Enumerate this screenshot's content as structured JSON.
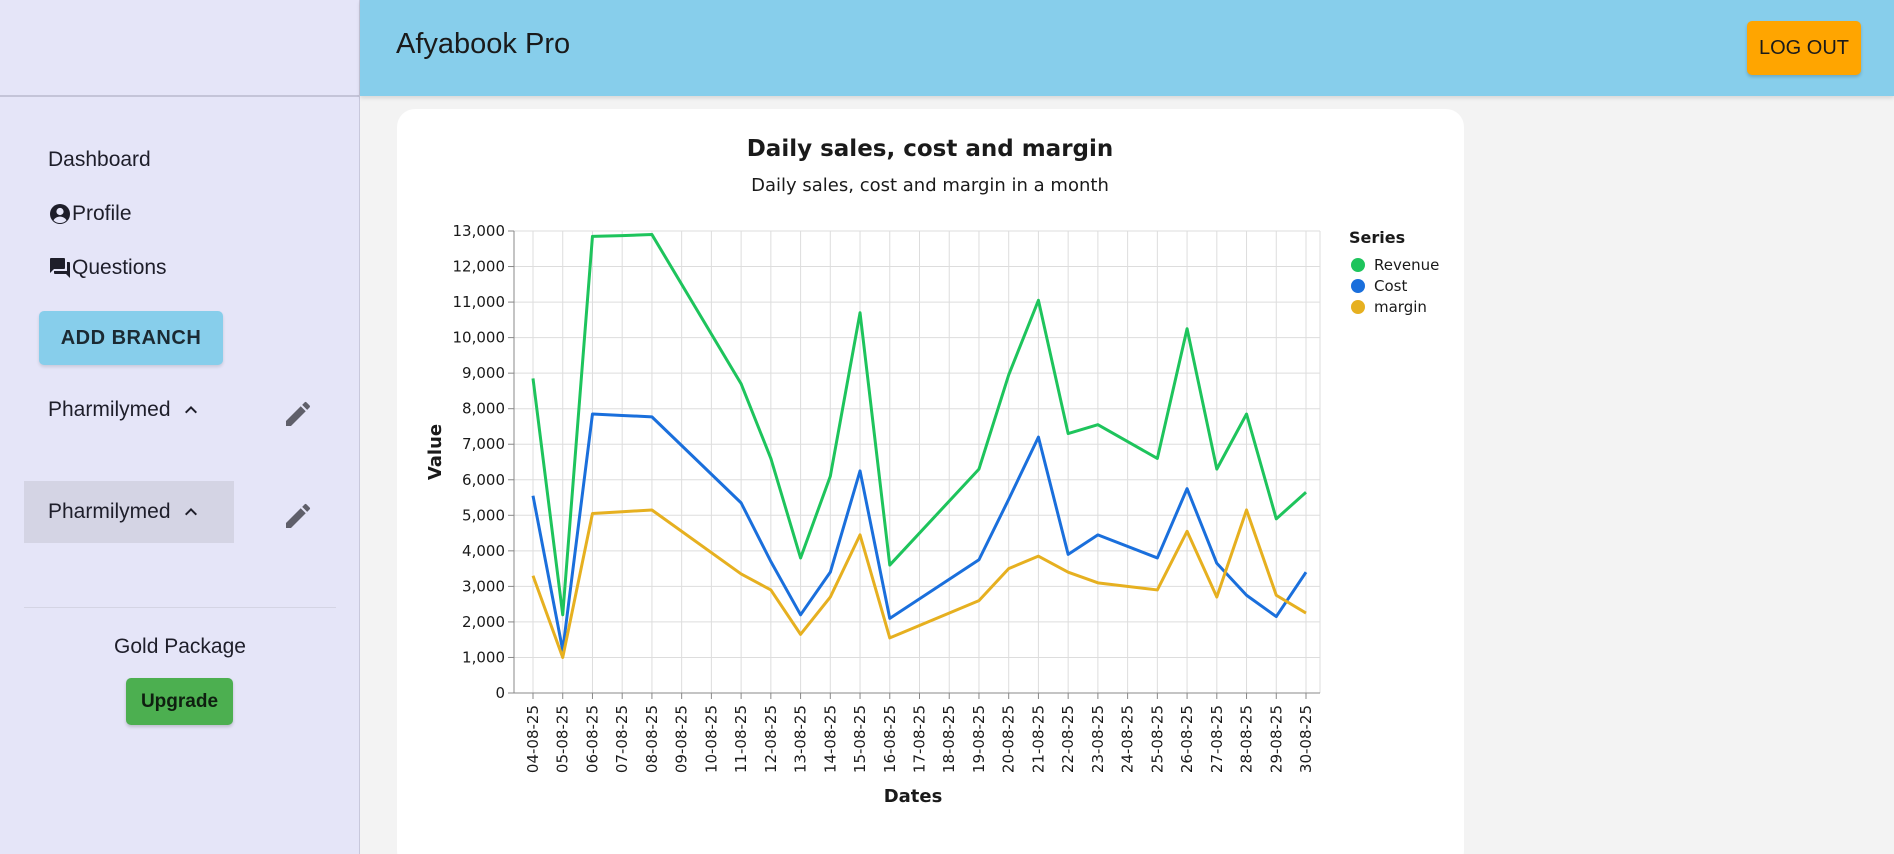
{
  "app": {
    "title": "Afyabook Pro",
    "logout_label": "LOG OUT"
  },
  "sidebar": {
    "nav": [
      {
        "label": "Dashboard",
        "icon": ""
      },
      {
        "label": "Profile",
        "icon": "account-circle-icon"
      },
      {
        "label": "Questions",
        "icon": "forum-icon"
      }
    ],
    "add_branch_label": "ADD BRANCH",
    "branches": [
      {
        "label": "Pharmilymed",
        "expanded": true,
        "selected": false
      },
      {
        "label": "Pharmilymed",
        "expanded": true,
        "selected": true
      }
    ],
    "package_label": "Gold Package",
    "upgrade_label": "Upgrade"
  },
  "colors": {
    "topbar": "#87ceeb",
    "sidebar": "#e5e5f8",
    "logout": "#ffa500",
    "upgrade": "#4caf50"
  },
  "chart_data": {
    "type": "line",
    "title": "Daily sales, cost and margin",
    "subtitle": "Daily sales, cost and margin in a month",
    "xlabel": "Dates",
    "ylabel": "Value",
    "ylim": [
      0,
      13000
    ],
    "yticks": [
      0,
      1000,
      2000,
      3000,
      4000,
      5000,
      6000,
      7000,
      8000,
      9000,
      10000,
      11000,
      12000,
      13000
    ],
    "categories": [
      "04-08-25",
      "05-08-25",
      "06-08-25",
      "07-08-25",
      "08-08-25",
      "09-08-25",
      "10-08-25",
      "11-08-25",
      "12-08-25",
      "13-08-25",
      "14-08-25",
      "15-08-25",
      "16-08-25",
      "17-08-25",
      "18-08-25",
      "19-08-25",
      "20-08-25",
      "21-08-25",
      "22-08-25",
      "23-08-25",
      "24-08-25",
      "25-08-25",
      "26-08-25",
      "27-08-25",
      "28-08-25",
      "29-08-25",
      "30-08-25"
    ],
    "grid": true,
    "legend": {
      "title": "Series",
      "position": "right"
    },
    "series": [
      {
        "name": "Revenue",
        "color": "#1ec45c",
        "values": [
          8850,
          2200,
          12850,
          12870,
          12900,
          null,
          null,
          8700,
          6600,
          3800,
          6100,
          10700,
          3600,
          null,
          null,
          6300,
          8950,
          11050,
          7300,
          7550,
          null,
          6600,
          10250,
          6300,
          7850,
          4900,
          5650
        ]
      },
      {
        "name": "Cost",
        "color": "#1a6fdc",
        "values": [
          5550,
          1200,
          7850,
          7810,
          7770,
          null,
          null,
          5350,
          3700,
          2200,
          3400,
          6250,
          2100,
          null,
          null,
          3750,
          5450,
          7200,
          3900,
          4450,
          null,
          3800,
          5750,
          3650,
          2750,
          2150,
          3400
        ]
      },
      {
        "name": "margin",
        "color": "#e6b020",
        "values": [
          3300,
          1000,
          5050,
          5100,
          5150,
          null,
          null,
          3350,
          2900,
          1650,
          2700,
          4450,
          1550,
          null,
          null,
          2600,
          3500,
          3850,
          3400,
          3100,
          null,
          2900,
          4550,
          2700,
          5150,
          2750,
          2250
        ]
      }
    ]
  }
}
